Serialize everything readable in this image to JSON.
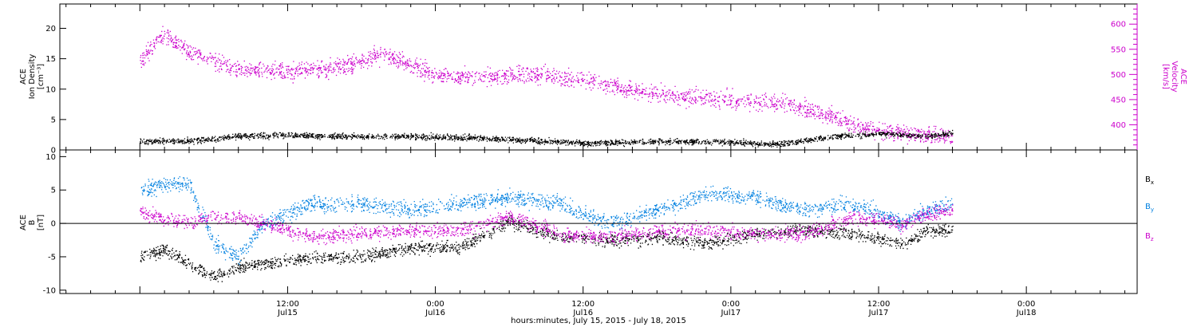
{
  "chart_data": [
    {
      "type": "scatter",
      "panel": "plasma",
      "ylabel_left": [
        "ACE",
        "Ion Density",
        "[cm⁻³]"
      ],
      "ylabel_right": [
        "ACE",
        "Velocity",
        "[km/s]"
      ],
      "ylim_left": [
        0,
        24
      ],
      "ylim_right": [
        350,
        640
      ],
      "yticks_left": [
        "0",
        "5",
        "10",
        "15",
        "20"
      ],
      "yticks_left_values": [
        0,
        5,
        10,
        15,
        20
      ],
      "yticks_right": [
        "400",
        "450",
        "500",
        "550",
        "600"
      ],
      "yticks_right_values": [
        400,
        450,
        500,
        550,
        600
      ],
      "series": [
        {
          "axis": "left",
          "color": "#000000",
          "anchors_hours": [
            0,
            4,
            8,
            12,
            16,
            20,
            24,
            28,
            32,
            36,
            40,
            44,
            48,
            52,
            56,
            60,
            64,
            66
          ],
          "anchors_values": [
            1.5,
            1.5,
            2.3,
            2.5,
            2.3,
            2.3,
            2.2,
            2.0,
            1.6,
            1.2,
            1.3,
            1.5,
            1.3,
            1.0,
            2.2,
            2.7,
            2.3,
            2.8
          ]
        },
        {
          "axis": "right",
          "color": "#cc00cc",
          "anchors_hours": [
            0,
            2,
            4,
            8,
            12,
            16,
            20,
            24,
            28,
            32,
            36,
            40,
            44,
            48,
            52,
            56,
            58,
            60,
            64,
            66
          ],
          "anchors_values": [
            530,
            580,
            545,
            510,
            505,
            515,
            540,
            500,
            495,
            500,
            490,
            470,
            455,
            450,
            445,
            420,
            400,
            390,
            380,
            375
          ]
        }
      ]
    },
    {
      "type": "scatter",
      "panel": "magnetic_field",
      "ylabel_left": [
        "ACE",
        "B",
        "[nT]"
      ],
      "ylim": [
        -10.5,
        11
      ],
      "yticks": [
        "-10",
        "-5",
        "0",
        "5",
        "10"
      ],
      "yticks_values": [
        -10,
        -5,
        0,
        5,
        10
      ],
      "zero_line": true,
      "legend_position": "right",
      "series": [
        {
          "name": "B",
          "subscript": "x",
          "color": "#000000",
          "anchors_hours": [
            0,
            2,
            4,
            6,
            8,
            10,
            14,
            18,
            22,
            26,
            30,
            34,
            38,
            42,
            46,
            50,
            54,
            58,
            62,
            64,
            66
          ],
          "anchors_values": [
            -5,
            -4,
            -6,
            -8,
            -6.5,
            -6,
            -5,
            -5,
            -3.5,
            -3.5,
            0.3,
            -2,
            -2.5,
            -2,
            -3,
            -1.5,
            -1,
            -1.5,
            -3,
            -1,
            -1
          ]
        },
        {
          "name": "B",
          "subscript": "y",
          "color": "#0080e0",
          "anchors_hours": [
            0,
            2,
            4,
            6,
            8,
            10,
            14,
            18,
            22,
            26,
            30,
            34,
            38,
            42,
            46,
            50,
            54,
            58,
            62,
            64,
            66
          ],
          "anchors_values": [
            5,
            6,
            6,
            -3,
            -5,
            0,
            3,
            3,
            2,
            3,
            4,
            3,
            0,
            2,
            4.5,
            4,
            2,
            3,
            0,
            2,
            3
          ]
        },
        {
          "name": "B",
          "subscript": "z",
          "color": "#cc00cc",
          "anchors_hours": [
            0,
            2,
            4,
            6,
            8,
            10,
            14,
            18,
            22,
            26,
            30,
            34,
            38,
            42,
            46,
            50,
            54,
            58,
            62,
            64,
            66
          ],
          "anchors_values": [
            2,
            0.5,
            0.2,
            1,
            1,
            0,
            -2,
            -1.5,
            -1,
            -1,
            1,
            -1.5,
            -2,
            -1,
            -1,
            -1.5,
            -1.5,
            1,
            0,
            1.5,
            2
          ]
        }
      ]
    }
  ],
  "x_axis": {
    "title": "hours:minutes, July 15, 2015 - July 18, 2015",
    "range_hours": [
      -6.5,
      81
    ],
    "tick_hours": [
      12,
      24,
      36,
      48,
      60,
      72
    ],
    "tick_time_labels": [
      "12:00",
      "0:00",
      "12:00",
      "0:00",
      "12:00",
      "0:00"
    ],
    "tick_date_labels": [
      "Jul15",
      "Jul16",
      "Jul16",
      "Jul17",
      "Jul17",
      "Jul18"
    ]
  },
  "colors": {
    "black": "#000000",
    "magenta": "#cc00cc",
    "blue": "#0080e0"
  }
}
